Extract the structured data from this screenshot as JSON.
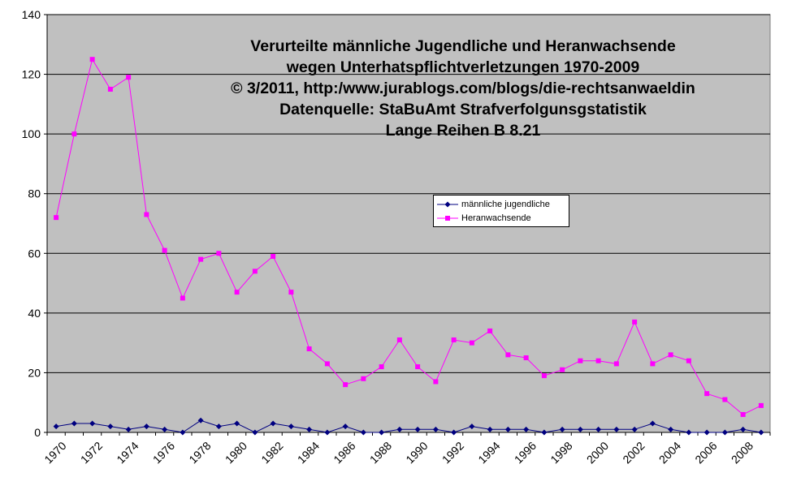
{
  "chart_data": {
    "type": "line",
    "title": [
      "Verurteilte männliche Jugendliche und Heranwachsende",
      "wegen Unterhatspflichtverletzungen 1970-2009",
      "©  3/2011, http:/www.jurablogs.com/blogs/die-rechtsanwaeldin",
      "Datenquelle: StaBuAmt Strafverfolgunsgstatistik",
      "Lange Reihen B 8.21"
    ],
    "x": [
      1970,
      1971,
      1972,
      1973,
      1974,
      1975,
      1976,
      1977,
      1978,
      1979,
      1980,
      1981,
      1982,
      1983,
      1984,
      1985,
      1986,
      1987,
      1988,
      1989,
      1990,
      1991,
      1992,
      1993,
      1994,
      1995,
      1996,
      1997,
      1998,
      1999,
      2000,
      2001,
      2002,
      2003,
      2004,
      2005,
      2006,
      2007,
      2008,
      2009
    ],
    "x_tick_labels": [
      "1970",
      "1972",
      "1974",
      "1976",
      "1978",
      "1980",
      "1982",
      "1984",
      "1986",
      "1988",
      "1990",
      "1992",
      "1994",
      "1996",
      "1998",
      "2000",
      "2002",
      "2004",
      "2006",
      "2008"
    ],
    "y_ticks": [
      0,
      20,
      40,
      60,
      80,
      100,
      120,
      140
    ],
    "ylim": [
      0,
      140
    ],
    "grid": true,
    "legend_position": "center-right",
    "plot_background": "#c0c0c0",
    "series": [
      {
        "name": "männliche jugendliche",
        "color": "#000080",
        "marker": "diamond",
        "values": [
          2,
          3,
          3,
          2,
          1,
          2,
          1,
          0,
          4,
          2,
          3,
          0,
          3,
          2,
          1,
          0,
          2,
          0,
          0,
          1,
          1,
          1,
          0,
          2,
          1,
          1,
          1,
          0,
          1,
          1,
          1,
          1,
          1,
          3,
          1,
          0,
          0,
          0,
          1,
          0
        ]
      },
      {
        "name": "Heranwachsende",
        "color": "#ff00ff",
        "marker": "square",
        "values": [
          72,
          100,
          125,
          115,
          119,
          73,
          61,
          45,
          58,
          60,
          47,
          54,
          59,
          47,
          28,
          23,
          16,
          18,
          22,
          31,
          22,
          17,
          31,
          30,
          34,
          26,
          25,
          19,
          21,
          24,
          24,
          23,
          37,
          23,
          26,
          24,
          13,
          11,
          6,
          9
        ]
      }
    ]
  }
}
